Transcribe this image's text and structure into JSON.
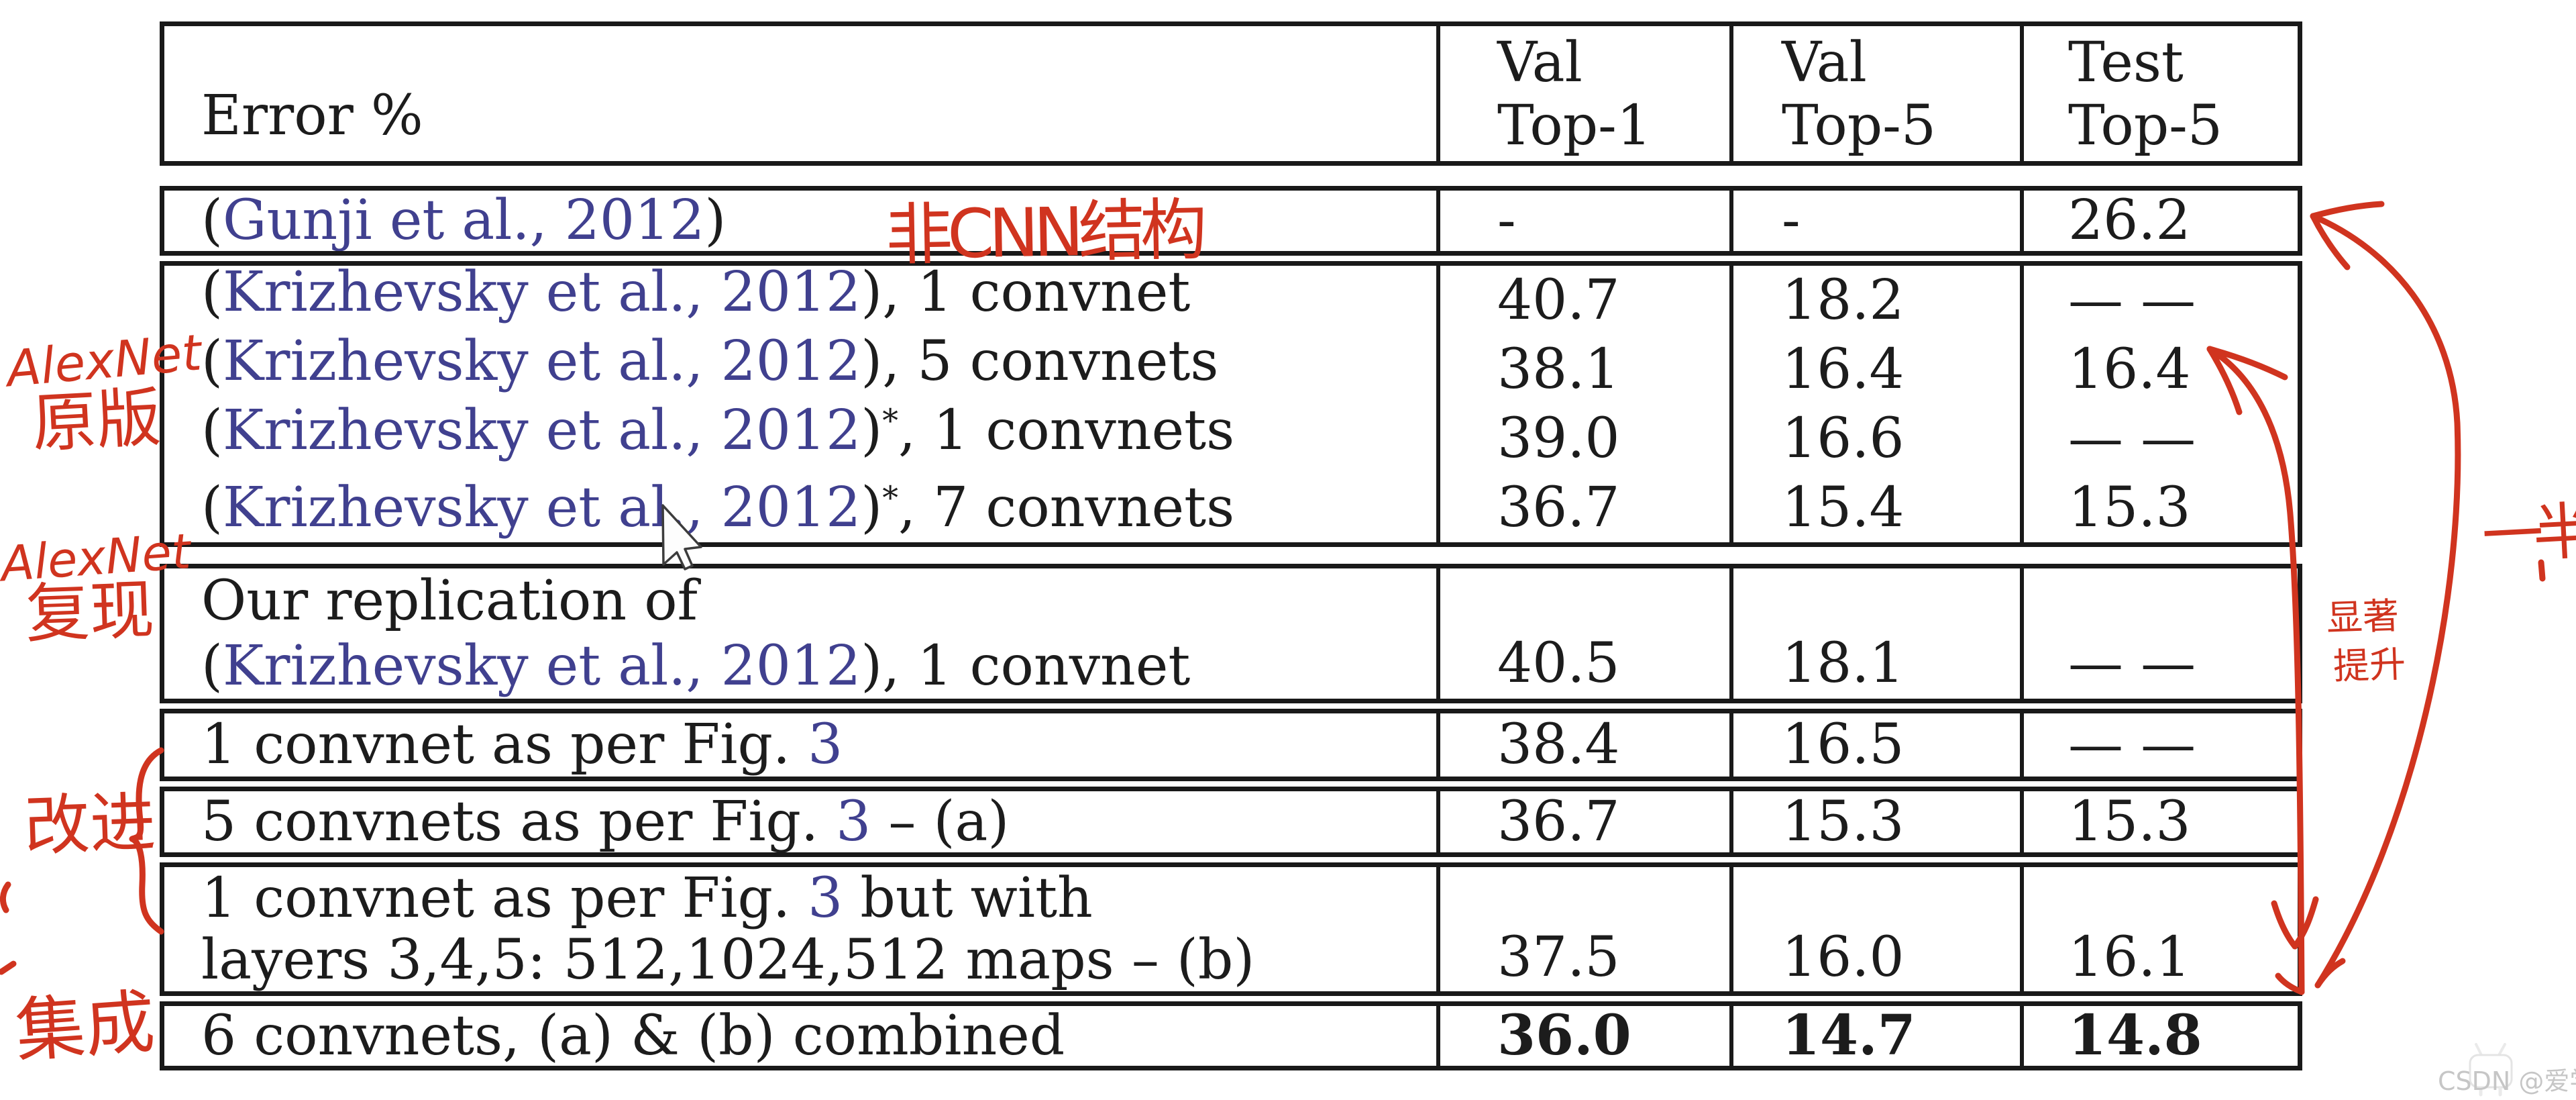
{
  "colors": {
    "ink_red": "#d0341f",
    "citation_blue": "#40408f",
    "text_black": "#1c1c1c",
    "border_black": "#191919",
    "watermark_gray": "#c4c4c4"
  },
  "table": {
    "header": {
      "error_label": "Error %",
      "columns": [
        [
          "Val",
          "Top-1"
        ],
        [
          "Val",
          "Top-5"
        ],
        [
          "Test",
          "Top-5"
        ]
      ]
    },
    "groups": [
      {
        "name": "gunji",
        "rows": [
          {
            "lines": [
              [
                [
                  "(",
                  "k"
                ],
                [
                  "Gunji et al., 2012",
                  "b"
                ],
                [
                  ")",
                  "k"
                ]
              ]
            ],
            "values": [
              "-",
              "-",
              "26.2"
            ]
          }
        ]
      },
      {
        "name": "alexnet-original",
        "rows": [
          {
            "lines": [
              [
                [
                  "(",
                  "k"
                ],
                [
                  "Krizhevsky et al., 2012",
                  "b"
                ],
                [
                  "), 1 convnet",
                  "k"
                ]
              ]
            ],
            "values": [
              "40.7",
              "18.2",
              "— —"
            ]
          },
          {
            "lines": [
              [
                [
                  "(",
                  "k"
                ],
                [
                  "Krizhevsky et al., 2012",
                  "b"
                ],
                [
                  "), 5 convnets",
                  "k"
                ]
              ]
            ],
            "values": [
              "38.1",
              "16.4",
              "16.4"
            ]
          },
          {
            "lines": [
              [
                [
                  "(",
                  "k"
                ],
                [
                  "Krizhevsky et al., 2012",
                  "b"
                ],
                [
                  ")",
                  "k"
                ],
                [
                  "*",
                  "sup"
                ],
                [
                  ", 1 convnets",
                  "k"
                ]
              ]
            ],
            "values": [
              "39.0",
              "16.6",
              "— —"
            ]
          },
          {
            "lines": [
              [
                [
                  "(",
                  "k"
                ],
                [
                  "Krizhevsky et al., 2012",
                  "b"
                ],
                [
                  ")",
                  "k"
                ],
                [
                  "*",
                  "sup"
                ],
                [
                  ", 7 convnets",
                  "k"
                ]
              ]
            ],
            "values": [
              "36.7",
              "15.4",
              "15.3"
            ]
          }
        ]
      },
      {
        "name": "alexnet-replication",
        "rows": [
          {
            "lines": [
              [
                [
                  "Our replication of",
                  "k"
                ]
              ],
              [
                [
                  "(",
                  "k"
                ],
                [
                  "Krizhevsky et al., 2012",
                  "b"
                ],
                [
                  "), 1 convnet",
                  "k"
                ]
              ]
            ],
            "values": [
              "40.5",
              "18.1",
              "— —"
            ]
          }
        ]
      },
      {
        "name": "improved-1convnet",
        "rows": [
          {
            "lines": [
              [
                [
                  "1 convnet as per Fig. ",
                  "k"
                ],
                [
                  "3",
                  "b"
                ]
              ]
            ],
            "values": [
              "38.4",
              "16.5",
              "— —"
            ]
          }
        ]
      },
      {
        "name": "improved-5convnets",
        "rows": [
          {
            "lines": [
              [
                [
                  "5 convnets as per Fig. ",
                  "k"
                ],
                [
                  "3",
                  "b"
                ],
                [
                  " – (a)",
                  "k"
                ]
              ]
            ],
            "values": [
              "36.7",
              "15.3",
              "15.3"
            ]
          }
        ]
      },
      {
        "name": "improved-wide",
        "rows": [
          {
            "lines": [
              [
                [
                  "1 convnet as per Fig. ",
                  "k"
                ],
                [
                  "3",
                  "b"
                ],
                [
                  " but with",
                  "k"
                ]
              ],
              [
                [
                  "layers 3,4,5: 512,1024,512 maps – (b)",
                  "k"
                ]
              ]
            ],
            "values": [
              "37.5",
              "16.0",
              "16.1"
            ]
          }
        ]
      },
      {
        "name": "ensemble",
        "rows": [
          {
            "lines": [
              [
                [
                  "6 convnets, (a) & (b) combined",
                  "k"
                ]
              ]
            ],
            "values": [
              "36.0",
              "14.7",
              "14.8"
            ],
            "bold": true
          }
        ]
      }
    ]
  },
  "annotations": {
    "inline_note": "非CNN结构",
    "left_notes": [
      {
        "id": "alexnet-original",
        "lines": [
          "AlexNet",
          "原版"
        ]
      },
      {
        "id": "alexnet-replication",
        "lines": [
          "AlexNet",
          "复现"
        ]
      },
      {
        "id": "improved",
        "lines": [
          "改进"
        ]
      },
      {
        "id": "ensemble",
        "lines": [
          "集成"
        ]
      }
    ],
    "right_notes": [
      {
        "id": "half",
        "lines": [
          "一半"
        ]
      },
      {
        "id": "significant-improvement",
        "lines": [
          "显著",
          "提升"
        ]
      }
    ]
  },
  "watermark": {
    "text": "CSDN @爱学习的书文"
  }
}
